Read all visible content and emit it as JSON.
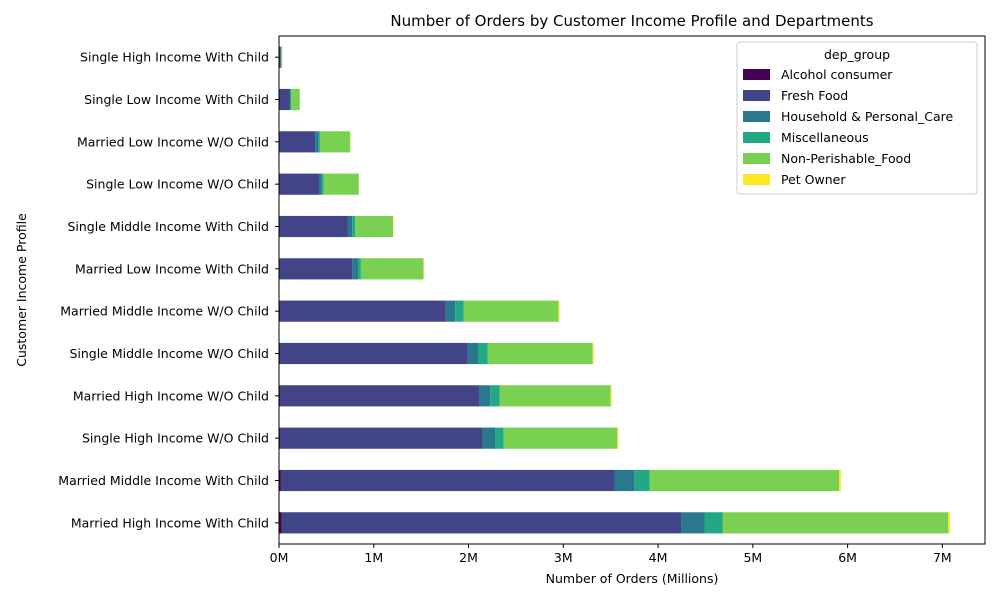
{
  "chart_data": {
    "type": "bar",
    "orientation": "horizontal",
    "stacked": true,
    "title": "Number of Orders by Customer Income Profile and Departments",
    "xlabel": "Number of Orders (Millions)",
    "ylabel": "Customer Income Profile",
    "xlim": [
      0,
      7.45
    ],
    "xticks": [
      {
        "value": 0,
        "label": "0M"
      },
      {
        "value": 1,
        "label": "1M"
      },
      {
        "value": 2,
        "label": "2M"
      },
      {
        "value": 3,
        "label": "3M"
      },
      {
        "value": 4,
        "label": "4M"
      },
      {
        "value": 5,
        "label": "5M"
      },
      {
        "value": 6,
        "label": "6M"
      },
      {
        "value": 7,
        "label": "7M"
      }
    ],
    "grid": false,
    "legend": {
      "title": "dep_group",
      "placement": "top-right"
    },
    "categories": [
      "Married High Income With Child",
      "Married Middle Income With Child",
      "Single High Income W/O Child",
      "Married High Income W/O Child",
      "Single Middle Income W/O Child",
      "Married Middle Income W/O Child",
      "Married Low Income With Child",
      "Single Middle Income With Child",
      "Single Low Income W/O Child",
      "Married Low Income W/O Child",
      "Single Low Income With Child",
      "Single High Income With Child"
    ],
    "series": [
      {
        "name": "Alcohol consumer",
        "color": "#440154",
        "values": [
          0.03,
          0.02,
          0.01,
          0.01,
          0.01,
          0.01,
          0.004,
          0.003,
          0.002,
          0.002,
          0.001,
          0.0003
        ]
      },
      {
        "name": "Fresh Food",
        "color": "#414487",
        "values": [
          4.22,
          3.52,
          2.14,
          2.1,
          1.98,
          1.75,
          0.77,
          0.72,
          0.42,
          0.38,
          0.11,
          0.018
        ]
      },
      {
        "name": "Household & Personal_Care",
        "color": "#2a788e",
        "values": [
          0.24,
          0.21,
          0.13,
          0.12,
          0.11,
          0.1,
          0.06,
          0.05,
          0.03,
          0.03,
          0.01,
          0.002
        ]
      },
      {
        "name": "Miscellaneous",
        "color": "#22a884",
        "values": [
          0.19,
          0.16,
          0.09,
          0.1,
          0.1,
          0.09,
          0.03,
          0.03,
          0.02,
          0.02,
          0.008,
          0.001
        ]
      },
      {
        "name": "Non-Perishable_Food",
        "color": "#7ad151",
        "values": [
          2.38,
          2.0,
          1.2,
          1.17,
          1.11,
          1.0,
          0.66,
          0.4,
          0.37,
          0.32,
          0.09,
          0.012
        ]
      },
      {
        "name": "Pet Owner",
        "color": "#fde725",
        "values": [
          0.02,
          0.02,
          0.01,
          0.01,
          0.01,
          0.01,
          0.005,
          0.004,
          0.003,
          0.003,
          0.001,
          0.0004
        ]
      }
    ]
  }
}
